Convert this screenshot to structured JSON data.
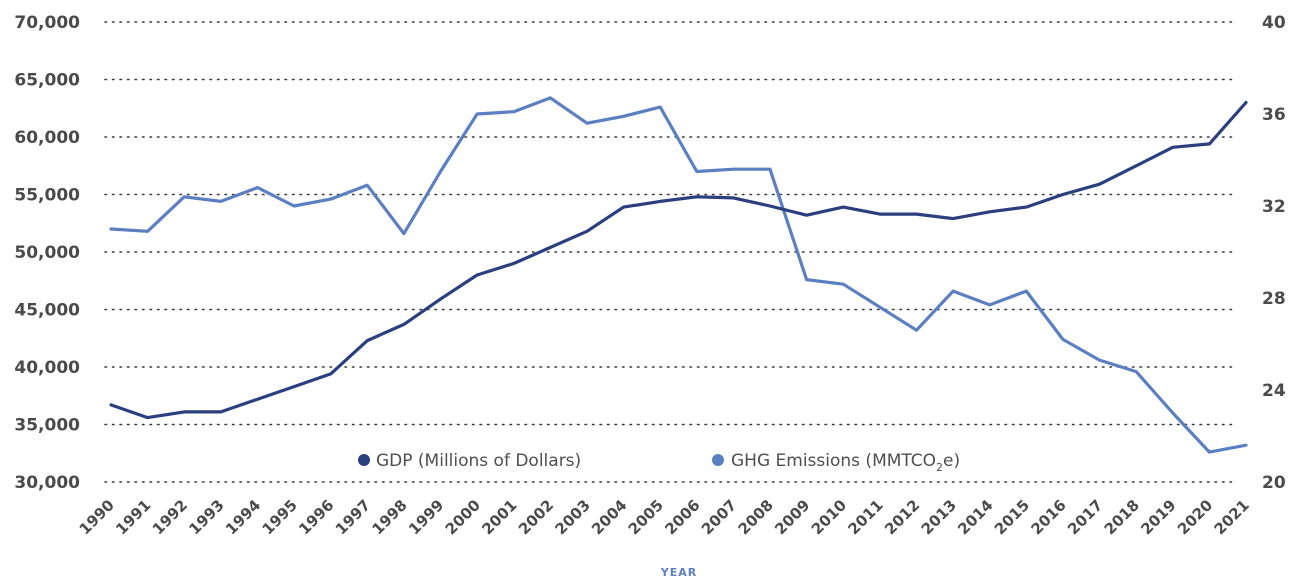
{
  "chart_data": {
    "type": "line",
    "x": [
      "1990",
      "1991",
      "1992",
      "1993",
      "1994",
      "1995",
      "1996",
      "1997",
      "1998",
      "1999",
      "2000",
      "2001",
      "2002",
      "2003",
      "2004",
      "2005",
      "2006",
      "2007",
      "2008",
      "2009",
      "2010",
      "2011",
      "2012",
      "2013",
      "2014",
      "2015",
      "2016",
      "2017",
      "2018",
      "2019",
      "2020",
      "2021"
    ],
    "xlabel": "YEAR",
    "ylabel_left": "",
    "ylabel_right": "",
    "ylim_left": [
      30000,
      70000
    ],
    "ylim_right": [
      20,
      40
    ],
    "yticks_left": [
      "30,000",
      "35,000",
      "40,000",
      "45,000",
      "50,000",
      "55,000",
      "60,000",
      "65,000",
      "70,000"
    ],
    "yticks_right": [
      "20",
      "24",
      "28",
      "32",
      "36",
      "40"
    ],
    "grid": true,
    "legend_position": "inside-bottom-center",
    "series": [
      {
        "name": "GDP (Millions of Dollars)",
        "axis": "left",
        "color": "#2b3f7e",
        "values": [
          36700,
          35600,
          36100,
          36100,
          37200,
          38300,
          39400,
          42300,
          43700,
          45900,
          48000,
          49000,
          50400,
          51800,
          53900,
          54400,
          54800,
          54700,
          54000,
          53200,
          53900,
          53300,
          53300,
          52900,
          53500,
          53900,
          55000,
          55900,
          57500,
          59100,
          59400,
          63000
        ]
      },
      {
        "name": "GHG Emissions (MMTCO",
        "name_sub": "2",
        "name_suffix": "e)",
        "axis": "right",
        "color": "#5b7fc0",
        "values": [
          31.0,
          30.9,
          32.4,
          32.2,
          32.8,
          32.0,
          32.3,
          32.9,
          30.8,
          33.5,
          36.0,
          36.1,
          36.7,
          35.6,
          35.9,
          36.3,
          33.5,
          33.6,
          33.6,
          28.8,
          28.6,
          27.6,
          26.6,
          28.3,
          27.7,
          28.3,
          26.2,
          25.3,
          24.8,
          23.0,
          21.3,
          21.6
        ]
      }
    ]
  }
}
